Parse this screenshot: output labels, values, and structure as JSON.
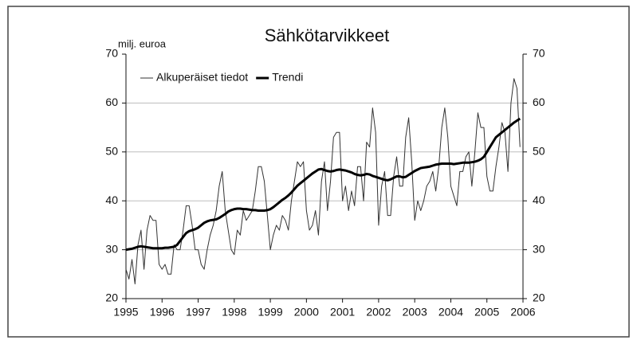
{
  "chart_data": {
    "type": "line",
    "title": "Sähkötarvikkeet",
    "ylabel": "milj. euroa",
    "x": [
      1995,
      1995.083,
      1995.167,
      1995.25,
      1995.333,
      1995.417,
      1995.5,
      1995.583,
      1995.667,
      1995.75,
      1995.833,
      1995.917,
      1996,
      1996.083,
      1996.167,
      1996.25,
      1996.333,
      1996.417,
      1996.5,
      1996.583,
      1996.667,
      1996.75,
      1996.833,
      1996.917,
      1997,
      1997.083,
      1997.167,
      1997.25,
      1997.333,
      1997.417,
      1997.5,
      1997.583,
      1997.667,
      1997.75,
      1997.833,
      1997.917,
      1998,
      1998.083,
      1998.167,
      1998.25,
      1998.333,
      1998.417,
      1998.5,
      1998.583,
      1998.667,
      1998.75,
      1998.833,
      1998.917,
      1999,
      1999.083,
      1999.167,
      1999.25,
      1999.333,
      1999.417,
      1999.5,
      1999.583,
      1999.667,
      1999.75,
      1999.833,
      1999.917,
      2000,
      2000.083,
      2000.167,
      2000.25,
      2000.333,
      2000.417,
      2000.5,
      2000.583,
      2000.667,
      2000.75,
      2000.833,
      2000.917,
      2001,
      2001.083,
      2001.167,
      2001.25,
      2001.333,
      2001.417,
      2001.5,
      2001.583,
      2001.667,
      2001.75,
      2001.833,
      2001.917,
      2002,
      2002.083,
      2002.167,
      2002.25,
      2002.333,
      2002.417,
      2002.5,
      2002.583,
      2002.667,
      2002.75,
      2002.833,
      2002.917,
      2003,
      2003.083,
      2003.167,
      2003.25,
      2003.333,
      2003.417,
      2003.5,
      2003.583,
      2003.667,
      2003.75,
      2003.833,
      2003.917,
      2004,
      2004.083,
      2004.167,
      2004.25,
      2004.333,
      2004.417,
      2004.5,
      2004.583,
      2004.667,
      2004.75,
      2004.833,
      2004.917,
      2005,
      2005.083,
      2005.167,
      2005.25,
      2005.333,
      2005.417,
      2005.5,
      2005.583,
      2005.667,
      2005.75,
      2005.833,
      2005.917
    ],
    "series": [
      {
        "name": "Alkuperäiset tiedot",
        "color": "#333333",
        "width": 1,
        "values": [
          26,
          24,
          28,
          23,
          31,
          34,
          26,
          34,
          37,
          36,
          36,
          27,
          26,
          27,
          25,
          25,
          31,
          30,
          30,
          34,
          39,
          39,
          35,
          30,
          30,
          27,
          26,
          30,
          33,
          35,
          38,
          43,
          46,
          38,
          34,
          30,
          29,
          34,
          33,
          38,
          36,
          37,
          38,
          42,
          47,
          47,
          44,
          37,
          30,
          33,
          35,
          34,
          37,
          36,
          34,
          40,
          44,
          48,
          47,
          48,
          38,
          34,
          35,
          38,
          33,
          44,
          48,
          38,
          44,
          53,
          54,
          54,
          40,
          43,
          38,
          42,
          39,
          47,
          47,
          40,
          52,
          51,
          59,
          54,
          35,
          43,
          46,
          37,
          37,
          45,
          49,
          43,
          43,
          53,
          57,
          48,
          36,
          40,
          38,
          40,
          43,
          44,
          46,
          42,
          47,
          55,
          59,
          53,
          43,
          41,
          39,
          46,
          46,
          49,
          50,
          43,
          50,
          58,
          55,
          55,
          45,
          42,
          42,
          47,
          51,
          56,
          54,
          46,
          60,
          65,
          63,
          51
        ]
      },
      {
        "name": "Trendi",
        "color": "#000000",
        "width": 3,
        "values": [
          30.0,
          30.1,
          30.2,
          30.4,
          30.6,
          30.7,
          30.6,
          30.5,
          30.4,
          30.3,
          30.3,
          30.3,
          30.3,
          30.4,
          30.4,
          30.5,
          30.6,
          31.0,
          31.8,
          32.6,
          33.4,
          33.8,
          34.0,
          34.2,
          34.5,
          35.0,
          35.5,
          35.8,
          36.0,
          36.1,
          36.2,
          36.5,
          36.9,
          37.3,
          37.8,
          38.1,
          38.3,
          38.4,
          38.4,
          38.3,
          38.3,
          38.2,
          38.1,
          38.1,
          38.0,
          38.0,
          38.0,
          38.1,
          38.3,
          38.7,
          39.2,
          39.7,
          40.2,
          40.6,
          41.1,
          41.7,
          42.4,
          43.1,
          43.6,
          44.1,
          44.6,
          45.1,
          45.6,
          46.0,
          46.4,
          46.5,
          46.3,
          46.1,
          46.0,
          46.1,
          46.3,
          46.4,
          46.3,
          46.2,
          46.0,
          45.8,
          45.5,
          45.3,
          45.2,
          45.3,
          45.5,
          45.4,
          45.1,
          44.9,
          44.7,
          44.5,
          44.3,
          44.2,
          44.4,
          44.7,
          45.0,
          45.0,
          44.8,
          44.9,
          45.3,
          45.7,
          46.1,
          46.4,
          46.7,
          46.8,
          46.9,
          47.0,
          47.2,
          47.4,
          47.5,
          47.6,
          47.6,
          47.6,
          47.6,
          47.5,
          47.6,
          47.7,
          47.8,
          47.8,
          47.8,
          47.9,
          48.0,
          48.2,
          48.5,
          49.0,
          50.0,
          51.0,
          52.0,
          53.0,
          53.5,
          54.0,
          54.5,
          55.0,
          55.5,
          56.0,
          56.4,
          56.8
        ]
      }
    ],
    "xlim": [
      1995,
      2006
    ],
    "xticks": [
      1995,
      1996,
      1997,
      1998,
      1999,
      2000,
      2001,
      2002,
      2003,
      2004,
      2005,
      2006
    ],
    "ylim": [
      20,
      70
    ],
    "yticks": [
      20,
      30,
      40,
      50,
      60,
      70
    ],
    "y2lim": [
      20,
      70
    ],
    "y2ticks": [
      20,
      30,
      40,
      50,
      60,
      70
    ],
    "grid": true
  }
}
